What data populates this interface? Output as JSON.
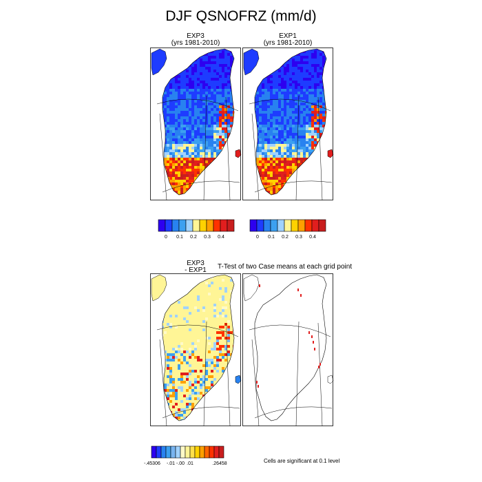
{
  "figure": {
    "title": "DJF QSNOFRZ (mm/d)"
  },
  "panels": {
    "exp3": {
      "title_line1": "EXP3",
      "title_line2": "(yrs 1981-2010)"
    },
    "exp1": {
      "title_line1": "EXP1",
      "title_line2": "(yrs 1981-2010)"
    },
    "diff": {
      "title_line1": "EXP3",
      "title_line2": "- EXP1"
    },
    "ttest": {
      "title": "T-Test of two Case means at each grid point"
    }
  },
  "colorbars": {
    "main": {
      "colors": [
        "#2d00f0",
        "#1e3cff",
        "#2882f0",
        "#3ca0f0",
        "#a0d2ff",
        "#fff596",
        "#ffd200",
        "#ffa000",
        "#ff3200",
        "#e11e1e",
        "#c81e1e"
      ],
      "labels": [
        "0",
        "0.1",
        "0.2",
        "0.3",
        "0.4"
      ]
    },
    "diff": {
      "colors": [
        "#2d00f0",
        "#1e3cff",
        "#2882f0",
        "#3ca0f0",
        "#78b4f0",
        "#a0d2ff",
        "#fffac8",
        "#fff596",
        "#ffe14b",
        "#ffd200",
        "#ffa000",
        "#ff6400",
        "#ff3200",
        "#e11e1e",
        "#c81e1e"
      ],
      "labels": [
        "-.45306",
        "-.01",
        "-.00",
        ".01",
        ".26458"
      ]
    }
  },
  "notes": {
    "significance": "Cells are significant at 0.1 level"
  },
  "map": {
    "land_color": "#ffffff",
    "sea_color": "#ffffff",
    "boundary_color": "#000000",
    "significant_color": "#e11e1e"
  }
}
